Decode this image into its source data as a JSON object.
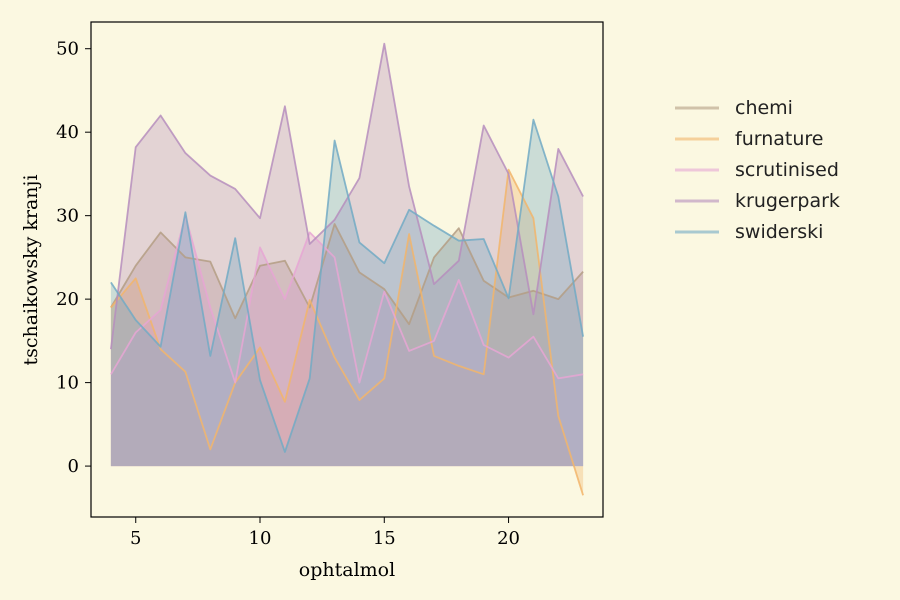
{
  "chart_data": {
    "type": "area",
    "xlabel": "ophtalmol",
    "ylabel": "tschaikowsky kranji",
    "xlim": [
      3.2,
      23.8
    ],
    "ylim": [
      -6.1,
      53.2
    ],
    "xticks": [
      5,
      10,
      15,
      20
    ],
    "yticks": [
      0,
      10,
      20,
      30,
      40,
      50
    ],
    "grid": false,
    "legend_position": "right",
    "x": [
      4,
      5,
      6,
      7,
      8,
      9,
      10,
      11,
      12,
      13,
      14,
      15,
      16,
      17,
      18,
      19,
      20,
      21,
      22,
      23
    ],
    "series": [
      {
        "name": "chemi",
        "color": "#b49e84",
        "values": [
          19.0,
          24.0,
          28.0,
          25.0,
          24.5,
          17.7,
          24.0,
          24.6,
          19.0,
          29.0,
          23.2,
          21.2,
          17.0,
          25.0,
          28.5,
          22.2,
          20.2,
          21.0,
          20.0,
          23.3
        ]
      },
      {
        "name": "furnature",
        "color": "#f2b56b",
        "values": [
          19.0,
          22.5,
          14.0,
          11.3,
          2.0,
          10.0,
          14.2,
          7.7,
          19.9,
          13.0,
          7.9,
          10.5,
          27.8,
          13.2,
          12.0,
          11.0,
          35.5,
          29.7,
          6.0,
          -3.5
        ]
      },
      {
        "name": "scrutinised",
        "color": "#e6a6d4",
        "values": [
          11.0,
          16.0,
          18.7,
          30.0,
          19.0,
          10.0,
          26.2,
          20.0,
          28.0,
          25.0,
          10.0,
          20.9,
          13.8,
          15.0,
          22.3,
          14.5,
          13.0,
          15.5,
          10.5,
          11.0
        ]
      },
      {
        "name": "krugerpark",
        "color": "#b68ebd",
        "values": [
          14.0,
          38.2,
          42.0,
          37.5,
          34.8,
          33.2,
          29.7,
          43.1,
          26.6,
          29.5,
          34.5,
          50.6,
          33.5,
          21.8,
          24.6,
          40.8,
          35.0,
          18.2,
          38.0,
          32.3
        ]
      },
      {
        "name": "swiderski",
        "color": "#72aac4",
        "values": [
          22.0,
          17.5,
          14.3,
          30.4,
          13.2,
          27.3,
          10.3,
          1.7,
          10.5,
          39.0,
          26.8,
          24.3,
          30.7,
          28.8,
          27.0,
          27.2,
          20.1,
          41.5,
          32.3,
          15.5
        ]
      }
    ]
  }
}
